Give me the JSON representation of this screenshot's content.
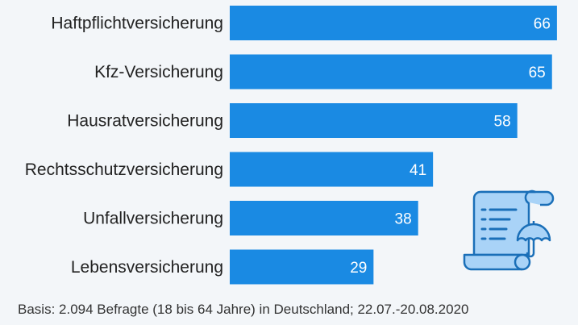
{
  "chart_data": {
    "type": "bar",
    "orientation": "horizontal",
    "categories": [
      "Haftpflichtversicherung",
      "Kfz-Versicherung",
      "Hausratversicherung",
      "Rechtsschutzversicherung",
      "Unfallversicherung",
      "Lebensversicherung"
    ],
    "values": [
      66,
      65,
      58,
      41,
      38,
      29
    ],
    "xlim": [
      0,
      70
    ],
    "grid": false,
    "data_labels": true,
    "bar_color": "#1a8ae3"
  },
  "footnote": "Basis: 2.094 Befragte (18 bis 64 Jahre) in Deutschland; 22.07.-20.08.2020",
  "colors": {
    "background": "#f3f6f9",
    "bar": "#1a8ae3",
    "illustration_fill": "#a9d3f7",
    "illustration_stroke": "#1a6fb8"
  },
  "illustration": {
    "icon": "insurance-document-umbrella-icon"
  }
}
